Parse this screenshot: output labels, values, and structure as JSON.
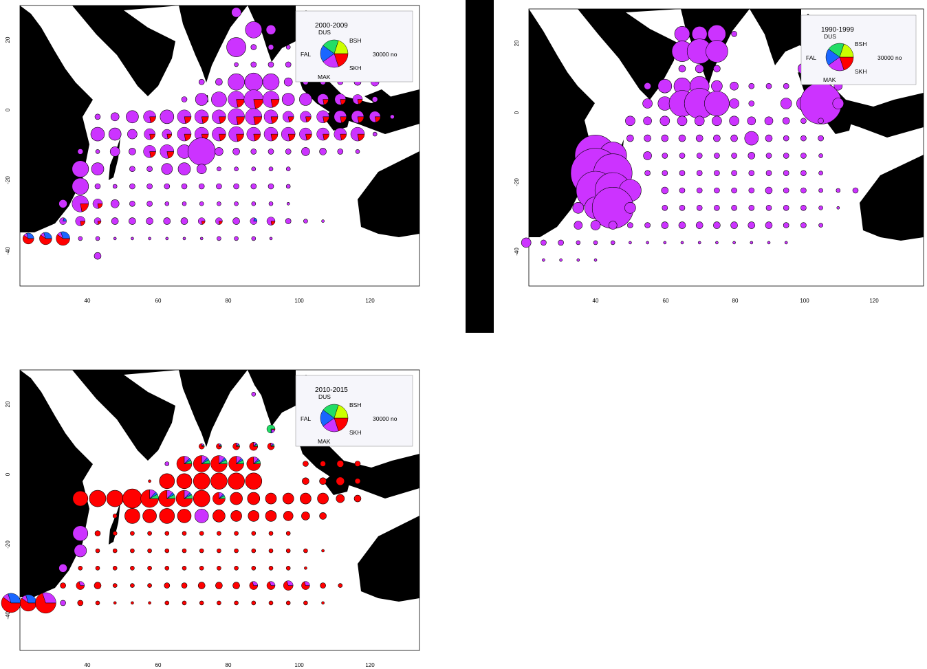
{
  "colors": {
    "BSH": "#ff0000",
    "SKH": "#cc33ff",
    "MAK": "#1a66ff",
    "FAL": "#22dd66",
    "DUS": "#ccff00",
    "land": "#000000",
    "legend_bg": "#f6f6fb"
  },
  "panels": [
    {
      "id": "p2000",
      "legend": {
        "title": "2000-2009",
        "labels": {
          "DUS": "DUS",
          "BSH": "BSH",
          "FAL": "FAL",
          "SKH": "SKH",
          "MAK": "MAK"
        },
        "scale_text": "30000 no"
      },
      "x_ticks": [
        "40",
        "60",
        "80",
        "100",
        "120"
      ],
      "y_ticks": [
        "20",
        "0",
        "-20",
        "-40"
      ]
    },
    {
      "id": "p1990",
      "legend": {
        "title": "1990-1999",
        "labels": {
          "DUS": "DUS",
          "BSH": "BSH",
          "FAL": "FAL",
          "SKH": "SKH",
          "MAK": "MAK"
        },
        "scale_text": "30000 no"
      },
      "x_ticks": [
        "40",
        "60",
        "80",
        "100",
        "120"
      ],
      "y_ticks": [
        "20",
        "0",
        "-20",
        "-40"
      ]
    },
    {
      "id": "p2010",
      "legend": {
        "title": "2010-2015",
        "labels": {
          "DUS": "DUS",
          "BSH": "BSH",
          "FAL": "FAL",
          "SKH": "SKH",
          "MAK": "MAK"
        },
        "scale_text": "30000 no"
      },
      "x_ticks": [
        "40",
        "60",
        "80",
        "100",
        "120"
      ],
      "y_ticks": [
        "20",
        "0",
        "-20",
        "-40"
      ]
    }
  ]
}
